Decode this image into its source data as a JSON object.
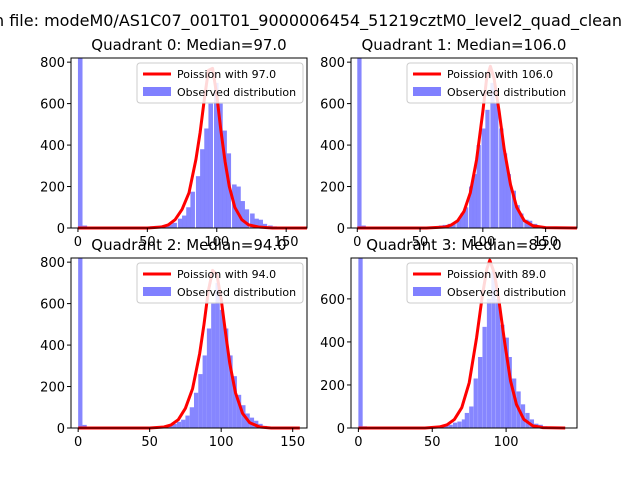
{
  "figure": {
    "suptitle": "n file: modeM0/AS1C07_001T01_9000006454_51219cztM0_level2_quad_clean"
  },
  "colors": {
    "histogram": "#8080ff",
    "poisson_line": "#ff0000",
    "legend_border": "#cccccc"
  },
  "chart_data": [
    {
      "type": "bar+line",
      "title": "Quadrant 0: Median=97.0",
      "median": 97.0,
      "xlim": [
        -5,
        165
      ],
      "ylim": [
        0,
        820
      ],
      "xticks": [
        0,
        50,
        100,
        150
      ],
      "yticks": [
        0,
        200,
        400,
        600,
        800
      ],
      "legend": {
        "placement": "upper-right",
        "entries": [
          "Poission with 97.0",
          "Observed distribution"
        ]
      },
      "series": [
        {
          "name": "Observed distribution",
          "kind": "histogram",
          "bin_width": 3.3,
          "bins": [
            [
              0,
              820
            ],
            [
              3.3,
              12
            ],
            [
              43,
              2
            ],
            [
              46,
              4
            ],
            [
              49,
              5
            ],
            [
              52,
              8
            ],
            [
              55,
              10
            ],
            [
              59,
              12
            ],
            [
              62,
              14
            ],
            [
              65,
              18
            ],
            [
              68,
              25
            ],
            [
              72,
              45
            ],
            [
              75,
              60
            ],
            [
              78,
              100
            ],
            [
              81,
              175
            ],
            [
              85,
              250
            ],
            [
              88,
              380
            ],
            [
              91,
              480
            ],
            [
              94,
              600
            ],
            [
              98,
              700
            ],
            [
              101,
              600
            ],
            [
              104,
              470
            ],
            [
              107,
              360
            ],
            [
              111,
              210
            ],
            [
              114,
              200
            ],
            [
              117,
              130
            ],
            [
              120,
              90
            ],
            [
              124,
              70
            ],
            [
              127,
              45
            ],
            [
              130,
              40
            ],
            [
              133,
              20
            ],
            [
              137,
              12
            ],
            [
              140,
              8
            ],
            [
              143,
              5
            ],
            [
              146,
              3
            ],
            [
              150,
              2
            ]
          ]
        },
        {
          "name": "Poission with 97.0",
          "kind": "line",
          "x": [
            0,
            50,
            60,
            65,
            70,
            75,
            80,
            85,
            88,
            91,
            94,
            97,
            100,
            103,
            106,
            109,
            113,
            118,
            123,
            130,
            140,
            165
          ],
          "y": [
            0,
            0,
            5,
            15,
            40,
            90,
            170,
            330,
            460,
            620,
            760,
            770,
            640,
            470,
            320,
            200,
            100,
            40,
            15,
            5,
            0,
            0
          ]
        }
      ]
    },
    {
      "type": "bar+line",
      "title": "Quadrant 1: Median=106.0",
      "median": 106.0,
      "xlim": [
        -5,
        175
      ],
      "ylim": [
        0,
        820
      ],
      "xticks": [
        0,
        50,
        100,
        150
      ],
      "yticks": [
        0,
        200,
        400,
        600,
        800
      ],
      "legend": {
        "placement": "upper-right",
        "entries": [
          "Poission with 106.0",
          "Observed distribution"
        ]
      },
      "series": [
        {
          "name": "Observed distribution",
          "kind": "histogram",
          "bin_width": 3.4,
          "bins": [
            [
              0,
              820
            ],
            [
              3.4,
              12
            ],
            [
              48,
              2
            ],
            [
              51,
              3
            ],
            [
              55,
              5
            ],
            [
              58,
              6
            ],
            [
              62,
              9
            ],
            [
              65,
              12
            ],
            [
              68,
              15
            ],
            [
              72,
              20
            ],
            [
              75,
              25
            ],
            [
              79,
              40
            ],
            [
              82,
              70
            ],
            [
              85,
              100
            ],
            [
              89,
              200
            ],
            [
              92,
              260
            ],
            [
              95,
              400
            ],
            [
              99,
              480
            ],
            [
              102,
              570
            ],
            [
              106,
              700
            ],
            [
              109,
              600
            ],
            [
              113,
              480
            ],
            [
              116,
              360
            ],
            [
              119,
              260
            ],
            [
              123,
              180
            ],
            [
              126,
              110
            ],
            [
              129,
              70
            ],
            [
              133,
              40
            ],
            [
              136,
              35
            ],
            [
              140,
              20
            ],
            [
              143,
              12
            ],
            [
              146,
              6
            ],
            [
              150,
              3
            ]
          ]
        },
        {
          "name": "Poission with 106.0",
          "kind": "line",
          "x": [
            0,
            55,
            70,
            75,
            80,
            85,
            90,
            95,
            100,
            103,
            106,
            109,
            113,
            117,
            122,
            127,
            133,
            140,
            150,
            175
          ],
          "y": [
            0,
            0,
            5,
            15,
            35,
            80,
            170,
            330,
            560,
            720,
            780,
            720,
            560,
            380,
            210,
            100,
            35,
            10,
            2,
            0
          ]
        }
      ]
    },
    {
      "type": "bar+line",
      "title": "Quadrant 2: Median=94.0",
      "median": 94.0,
      "xlim": [
        -5,
        160
      ],
      "ylim": [
        0,
        820
      ],
      "xticks": [
        0,
        50,
        100,
        150
      ],
      "yticks": [
        0,
        200,
        400,
        600,
        800
      ],
      "legend": {
        "placement": "upper-right",
        "entries": [
          "Poission with 94.0",
          "Observed distribution"
        ]
      },
      "series": [
        {
          "name": "Observed distribution",
          "kind": "histogram",
          "bin_width": 3.0,
          "bins": [
            [
              0,
              820
            ],
            [
              3,
              15
            ],
            [
              45,
              2
            ],
            [
              48,
              3
            ],
            [
              51,
              5
            ],
            [
              54,
              7
            ],
            [
              57,
              8
            ],
            [
              60,
              10
            ],
            [
              63,
              15
            ],
            [
              66,
              20
            ],
            [
              69,
              30
            ],
            [
              72,
              40
            ],
            [
              75,
              60
            ],
            [
              78,
              100
            ],
            [
              81,
              170
            ],
            [
              84,
              260
            ],
            [
              87,
              350
            ],
            [
              90,
              480
            ],
            [
              93,
              600
            ],
            [
              96,
              700
            ],
            [
              99,
              570
            ],
            [
              102,
              480
            ],
            [
              105,
              350
            ],
            [
              108,
              250
            ],
            [
              111,
              160
            ],
            [
              114,
              110
            ],
            [
              117,
              70
            ],
            [
              120,
              50
            ],
            [
              123,
              35
            ],
            [
              126,
              20
            ],
            [
              129,
              10
            ],
            [
              132,
              5
            ],
            [
              135,
              3
            ]
          ]
        },
        {
          "name": "Poission with 94.0",
          "kind": "line",
          "x": [
            0,
            50,
            60,
            65,
            70,
            75,
            80,
            85,
            88,
            91,
            94,
            97,
            100,
            103,
            106,
            110,
            115,
            120,
            127,
            135,
            155
          ],
          "y": [
            0,
            0,
            5,
            15,
            40,
            95,
            190,
            360,
            500,
            660,
            760,
            740,
            620,
            460,
            310,
            170,
            70,
            25,
            5,
            0,
            0
          ]
        }
      ]
    },
    {
      "type": "bar+line",
      "title": "Quadrant 3: Median=89.0",
      "median": 89.0,
      "xlim": [
        -5,
        148
      ],
      "ylim": [
        0,
        790
      ],
      "xticks": [
        0,
        50,
        100
      ],
      "yticks": [
        0,
        200,
        400,
        600
      ],
      "legend": {
        "placement": "upper-right",
        "entries": [
          "Poission with 89.0",
          "Observed distribution"
        ]
      },
      "series": [
        {
          "name": "Observed distribution",
          "kind": "histogram",
          "bin_width": 2.9,
          "bins": [
            [
              0,
              790
            ],
            [
              2.9,
              8
            ],
            [
              43,
              2
            ],
            [
              46,
              3
            ],
            [
              49,
              5
            ],
            [
              52,
              7
            ],
            [
              55,
              10
            ],
            [
              58,
              12
            ],
            [
              61,
              15
            ],
            [
              64,
              25
            ],
            [
              67,
              30
            ],
            [
              70,
              40
            ],
            [
              72,
              70
            ],
            [
              75,
              100
            ],
            [
              78,
              230
            ],
            [
              81,
              330
            ],
            [
              84,
              470
            ],
            [
              87,
              600
            ],
            [
              90,
              730
            ],
            [
              93,
              600
            ],
            [
              96,
              480
            ],
            [
              99,
              420
            ],
            [
              101,
              330
            ],
            [
              104,
              230
            ],
            [
              107,
              170
            ],
            [
              110,
              110
            ],
            [
              113,
              70
            ],
            [
              116,
              40
            ],
            [
              119,
              20
            ],
            [
              122,
              15
            ],
            [
              125,
              8
            ],
            [
              128,
              5
            ]
          ]
        },
        {
          "name": "Poission with 89.0",
          "kind": "line",
          "x": [
            0,
            45,
            55,
            60,
            65,
            70,
            75,
            80,
            84,
            87,
            89,
            92,
            95,
            99,
            103,
            107,
            112,
            118,
            125,
            140
          ],
          "y": [
            0,
            0,
            5,
            15,
            40,
            95,
            210,
            420,
            620,
            740,
            780,
            720,
            600,
            400,
            220,
            110,
            40,
            10,
            2,
            0
          ]
        }
      ]
    }
  ]
}
